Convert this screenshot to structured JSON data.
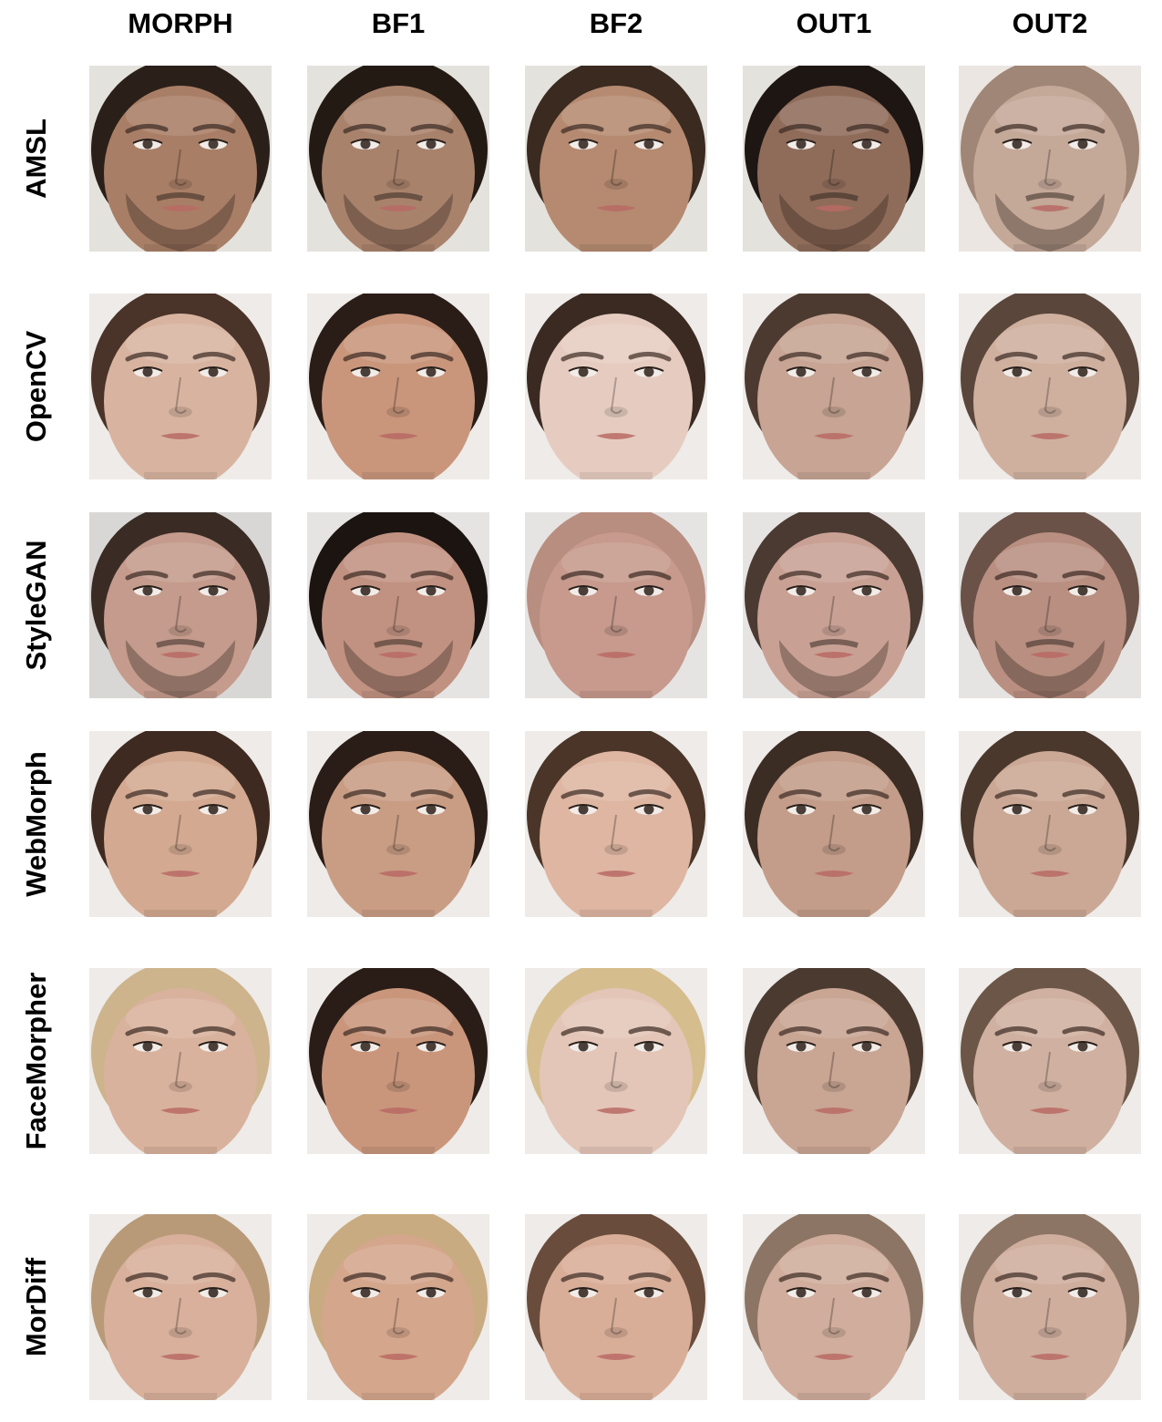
{
  "columns": [
    "MORPH",
    "BF1",
    "BF2",
    "OUT1",
    "OUT2"
  ],
  "rows": [
    {
      "label": "AMSL",
      "faces": [
        {
          "skin": "#a97e66",
          "hair": "#2b2019",
          "beard": true,
          "bg": "#e4e2dd"
        },
        {
          "skin": "#a9826c",
          "hair": "#241a14",
          "beard": true,
          "bg": "#e4e2dd"
        },
        {
          "skin": "#b58a70",
          "hair": "#3a2a20",
          "beard": false,
          "bg": "#e4e2dd"
        },
        {
          "skin": "#8f6c5a",
          "hair": "#1e1613",
          "beard": true,
          "bg": "#e4e2dd"
        },
        {
          "skin": "#c4a898",
          "hair": "#a08676",
          "beard": true,
          "bg": "#ece6e2"
        }
      ]
    },
    {
      "label": "OpenCV",
      "faces": [
        {
          "skin": "#d8b4a0",
          "hair": "#4a3328",
          "beard": false,
          "bg": "#eeebe8"
        },
        {
          "skin": "#c9967c",
          "hair": "#2a1d17",
          "beard": false,
          "bg": "#eeebe8"
        },
        {
          "skin": "#e6ccc0",
          "hair": "#3a2a22",
          "beard": false,
          "bg": "#eeebe8"
        },
        {
          "skin": "#c7a493",
          "hair": "#4c3a30",
          "beard": false,
          "bg": "#eeebe8"
        },
        {
          "skin": "#cfb09f",
          "hair": "#5a463b",
          "beard": false,
          "bg": "#eeebe8"
        }
      ]
    },
    {
      "label": "StyleGAN",
      "faces": [
        {
          "skin": "#c49b8c",
          "hair": "#3a2c25",
          "beard": true,
          "bg": "#d9d7d5"
        },
        {
          "skin": "#c19281",
          "hair": "#1b1411",
          "beard": true,
          "bg": "#e6e4e2"
        },
        {
          "skin": "#c79a8d",
          "hair": "#b88e80",
          "beard": false,
          "bg": "#e6e4e2"
        },
        {
          "skin": "#c9a194",
          "hair": "#4a3a32",
          "beard": true,
          "bg": "#e6e4e2"
        },
        {
          "skin": "#b98f81",
          "hair": "#6a5248",
          "beard": true,
          "bg": "#e6e4e2"
        }
      ]
    },
    {
      "label": "WebMorph",
      "faces": [
        {
          "skin": "#d3a991",
          "hair": "#3e2a20",
          "beard": false,
          "bg": "#eeebe8"
        },
        {
          "skin": "#c99d84",
          "hair": "#2a1c16",
          "beard": false,
          "bg": "#eeebe8"
        },
        {
          "skin": "#deb6a2",
          "hair": "#4a3528",
          "beard": false,
          "bg": "#eeebe8"
        },
        {
          "skin": "#c39d89",
          "hair": "#3b2c24",
          "beard": false,
          "bg": "#eeebe8"
        },
        {
          "skin": "#cba895",
          "hair": "#4a382d",
          "beard": false,
          "bg": "#eeebe8"
        }
      ]
    },
    {
      "label": "FaceMorpher",
      "faces": [
        {
          "skin": "#d9b29d",
          "hair": "#cdb48c",
          "beard": false,
          "bg": "#eeebe8"
        },
        {
          "skin": "#c9967c",
          "hair": "#2a1d17",
          "beard": false,
          "bg": "#eeebe8"
        },
        {
          "skin": "#e3c6b8",
          "hair": "#d6bd8e",
          "beard": false,
          "bg": "#eeebe8"
        },
        {
          "skin": "#c9a593",
          "hair": "#4b3a30",
          "beard": false,
          "bg": "#eeebe8"
        },
        {
          "skin": "#d0b0a0",
          "hair": "#6b5648",
          "beard": false,
          "bg": "#eeebe8"
        }
      ]
    },
    {
      "label": "MorDiff",
      "faces": [
        {
          "skin": "#d8b09b",
          "hair": "#b89a78",
          "beard": false,
          "bg": "#eeebe8"
        },
        {
          "skin": "#d4a68c",
          "hair": "#c8ab80",
          "beard": false,
          "bg": "#eeebe8"
        },
        {
          "skin": "#d9ae98",
          "hair": "#6a4c3c",
          "beard": false,
          "bg": "#eeebe8"
        },
        {
          "skin": "#d0ad9c",
          "hair": "#8c7564",
          "beard": false,
          "bg": "#eeebe8"
        },
        {
          "skin": "#cfae9e",
          "hair": "#8c7564",
          "beard": false,
          "bg": "#eeebe8"
        }
      ]
    }
  ]
}
